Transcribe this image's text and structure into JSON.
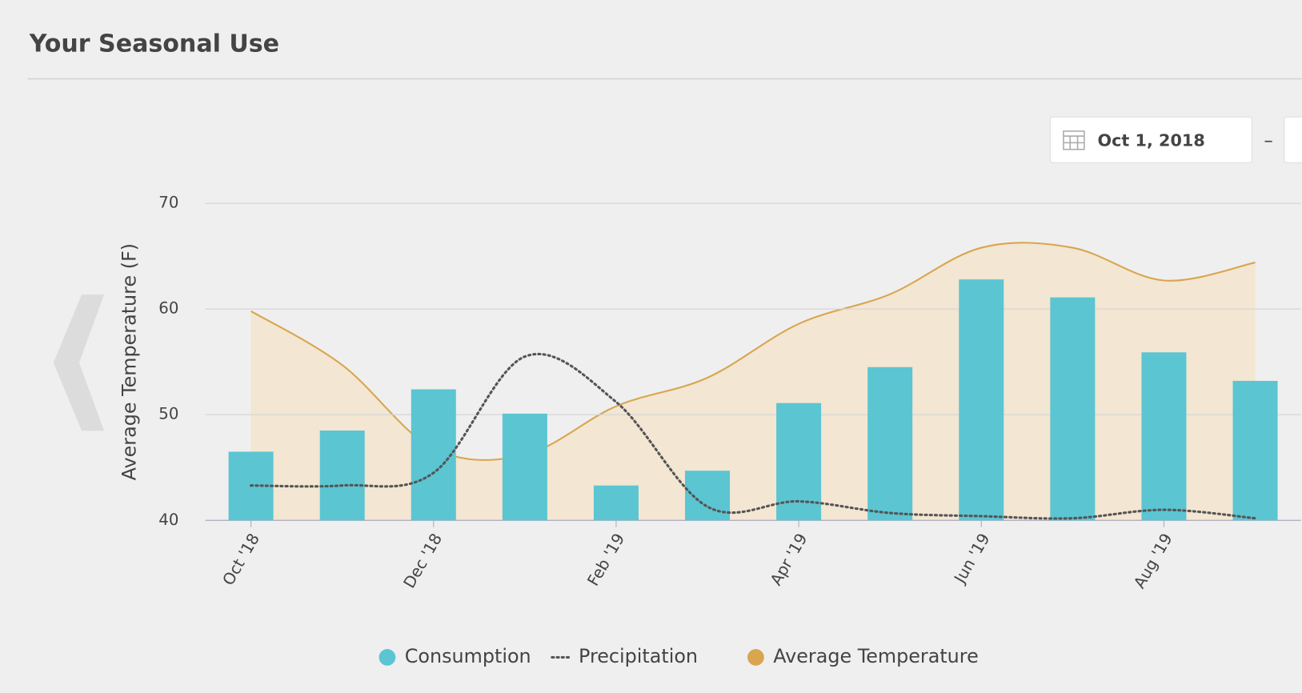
{
  "header": {
    "title": "Your Seasonal Use"
  },
  "date_picker": {
    "start": "Oct 1, 2018",
    "separator": "–"
  },
  "chart_data": {
    "type": "bar",
    "y_label": "Average Temperature (F)",
    "categories": [
      "Oct '18",
      null,
      "Dec '18",
      null,
      "Feb '19",
      null,
      "Apr '19",
      null,
      "Jun '19",
      null,
      "Aug '19",
      null
    ],
    "ylim": [
      40,
      70
    ],
    "yticks": [
      40,
      50,
      60,
      70
    ],
    "grid": true,
    "series": [
      {
        "name": "Consumption",
        "type": "bar",
        "color": "#5bc5d2",
        "values": [
          46.5,
          48.5,
          52.4,
          50.1,
          43.3,
          44.7,
          51.1,
          54.5,
          62.8,
          61.1,
          55.9,
          53.2
        ]
      },
      {
        "name": "Precipitation",
        "type": "line",
        "style": "dotted",
        "color": "#555555",
        "values": [
          43.3,
          43.3,
          44.5,
          55.5,
          51.2,
          41.3,
          41.8,
          40.7,
          40.4,
          40.2,
          41.0,
          40.2
        ]
      },
      {
        "name": "Average Temperature",
        "type": "area",
        "color": "#d9a54f",
        "fill": "#f3e6d2",
        "values": [
          59.8,
          54.7,
          46.8,
          46.2,
          50.8,
          53.5,
          58.6,
          61.4,
          65.8,
          65.8,
          62.7,
          64.4
        ]
      }
    ]
  }
}
